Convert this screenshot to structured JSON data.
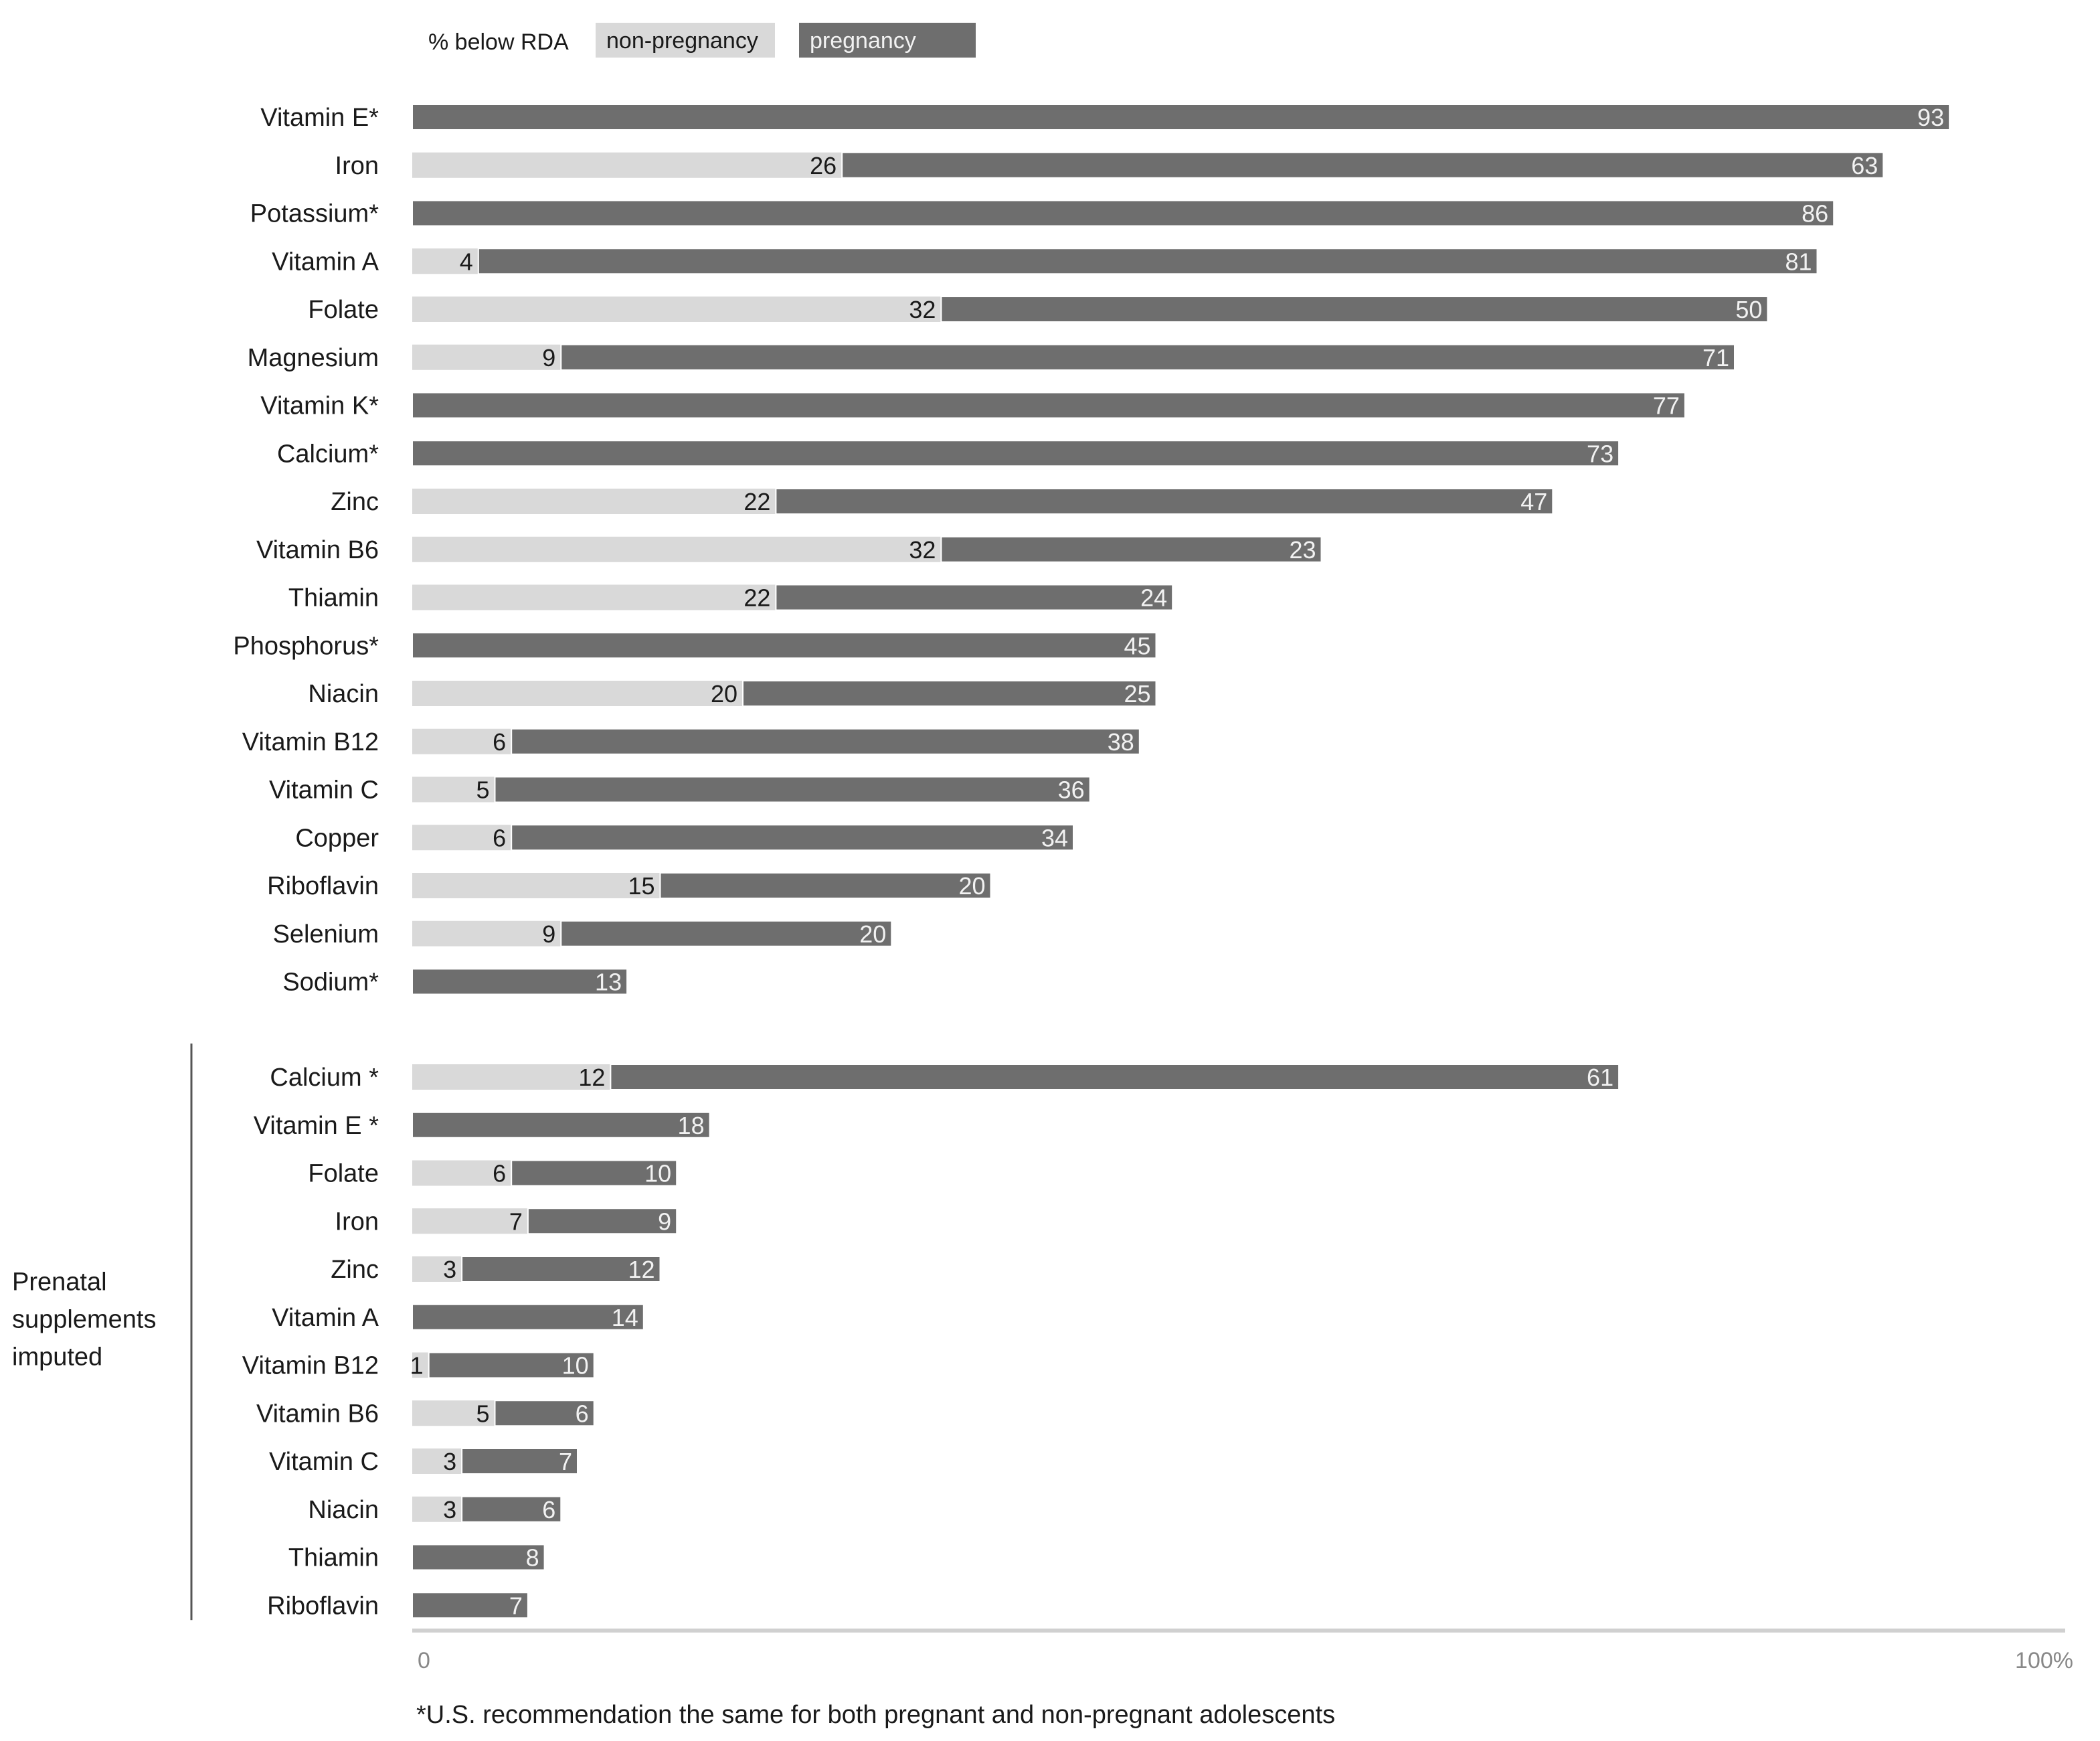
{
  "chart_data": {
    "type": "bar",
    "orientation": "horizontal",
    "stacked": true,
    "legend": {
      "title": "% below RDA",
      "placement": "top",
      "items": [
        {
          "name": "non-pregnancy",
          "color": "#d9d9d9"
        },
        {
          "name": "pregnancy",
          "color": "#6e6e6e"
        }
      ]
    },
    "xlim": [
      0,
      100
    ],
    "x_ticks": [
      "0",
      "100%"
    ],
    "groups": [
      {
        "label": "",
        "rows": [
          {
            "category": "Vitamin E*",
            "non_pregnancy": null,
            "pregnancy": 93
          },
          {
            "category": "Iron",
            "non_pregnancy": 26,
            "pregnancy": 63
          },
          {
            "category": "Potassium*",
            "non_pregnancy": null,
            "pregnancy": 86
          },
          {
            "category": "Vitamin A",
            "non_pregnancy": 4,
            "pregnancy": 81
          },
          {
            "category": "Folate",
            "non_pregnancy": 32,
            "pregnancy": 50
          },
          {
            "category": "Magnesium",
            "non_pregnancy": 9,
            "pregnancy": 71
          },
          {
            "category": "Vitamin K*",
            "non_pregnancy": null,
            "pregnancy": 77
          },
          {
            "category": "Calcium*",
            "non_pregnancy": null,
            "pregnancy": 73
          },
          {
            "category": "Zinc",
            "non_pregnancy": 22,
            "pregnancy": 47
          },
          {
            "category": "Vitamin B6",
            "non_pregnancy": 32,
            "pregnancy": 23
          },
          {
            "category": "Thiamin",
            "non_pregnancy": 22,
            "pregnancy": 24
          },
          {
            "category": "Phosphorus*",
            "non_pregnancy": null,
            "pregnancy": 45
          },
          {
            "category": "Niacin",
            "non_pregnancy": 20,
            "pregnancy": 25
          },
          {
            "category": "Vitamin B12",
            "non_pregnancy": 6,
            "pregnancy": 38
          },
          {
            "category": "Vitamin C",
            "non_pregnancy": 5,
            "pregnancy": 36
          },
          {
            "category": "Copper",
            "non_pregnancy": 6,
            "pregnancy": 34
          },
          {
            "category": "Riboflavin",
            "non_pregnancy": 15,
            "pregnancy": 20
          },
          {
            "category": "Selenium",
            "non_pregnancy": 9,
            "pregnancy": 20
          },
          {
            "category": "Sodium*",
            "non_pregnancy": null,
            "pregnancy": 13
          }
        ]
      },
      {
        "label": "Prenatal supplements imputed",
        "rows": [
          {
            "category": "Calcium *",
            "non_pregnancy": 12,
            "pregnancy": 61
          },
          {
            "category": "Vitamin E *",
            "non_pregnancy": null,
            "pregnancy": 18
          },
          {
            "category": "Folate",
            "non_pregnancy": 6,
            "pregnancy": 10
          },
          {
            "category": "Iron",
            "non_pregnancy": 7,
            "pregnancy": 9
          },
          {
            "category": "Zinc",
            "non_pregnancy": 3,
            "pregnancy": 12
          },
          {
            "category": "Vitamin A",
            "non_pregnancy": null,
            "pregnancy": 14
          },
          {
            "category": "Vitamin B12",
            "non_pregnancy": 1,
            "pregnancy": 10
          },
          {
            "category": "Vitamin B6",
            "non_pregnancy": 5,
            "pregnancy": 6
          },
          {
            "category": "Vitamin C",
            "non_pregnancy": 3,
            "pregnancy": 7
          },
          {
            "category": "Niacin",
            "non_pregnancy": 3,
            "pregnancy": 6
          },
          {
            "category": "Thiamin",
            "non_pregnancy": null,
            "pregnancy": 8
          },
          {
            "category": "Riboflavin",
            "non_pregnancy": null,
            "pregnancy": 7
          }
        ]
      }
    ],
    "footnote": "*U.S. recommendation the same for both pregnant and non-pregnant adolescents"
  }
}
